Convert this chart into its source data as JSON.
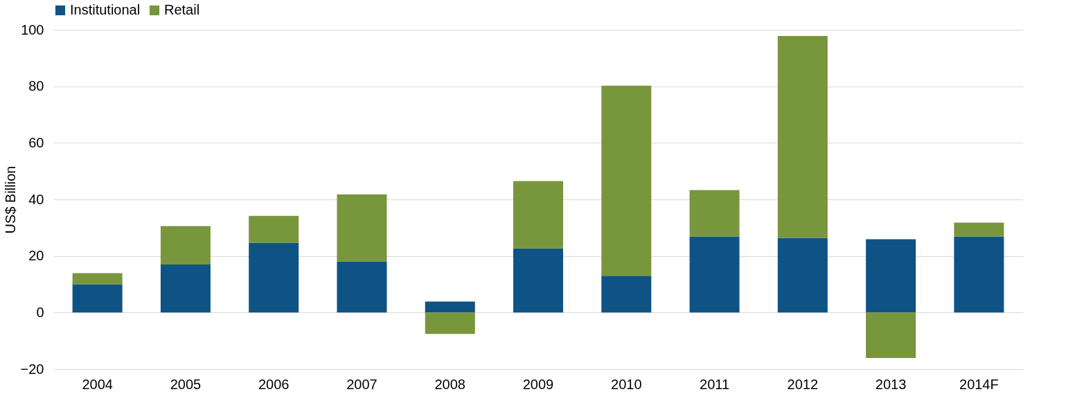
{
  "chart_data": {
    "type": "bar",
    "stacked": true,
    "ylabel": "US$ Billion",
    "categories": [
      "2004",
      "2005",
      "2006",
      "2007",
      "2008",
      "2009",
      "2010",
      "2011",
      "2012",
      "2013",
      "2014F"
    ],
    "series": [
      {
        "name": "Institutional",
        "color": "#0e5384",
        "values": [
          10,
          17,
          24.7,
          18.1,
          3.9,
          22.7,
          13,
          26.9,
          26.4,
          25.9,
          26.9
        ]
      },
      {
        "name": "Retail",
        "color": "#78963c",
        "values": [
          3.9,
          13.6,
          9.5,
          23.7,
          -7.6,
          23.8,
          67.2,
          16.4,
          71.4,
          -16.1,
          4.9
        ]
      }
    ],
    "ylim": [
      -20,
      100
    ],
    "yticks": [
      -20,
      0,
      20,
      40,
      60,
      80,
      100
    ],
    "grid": "y",
    "legend": "top"
  }
}
